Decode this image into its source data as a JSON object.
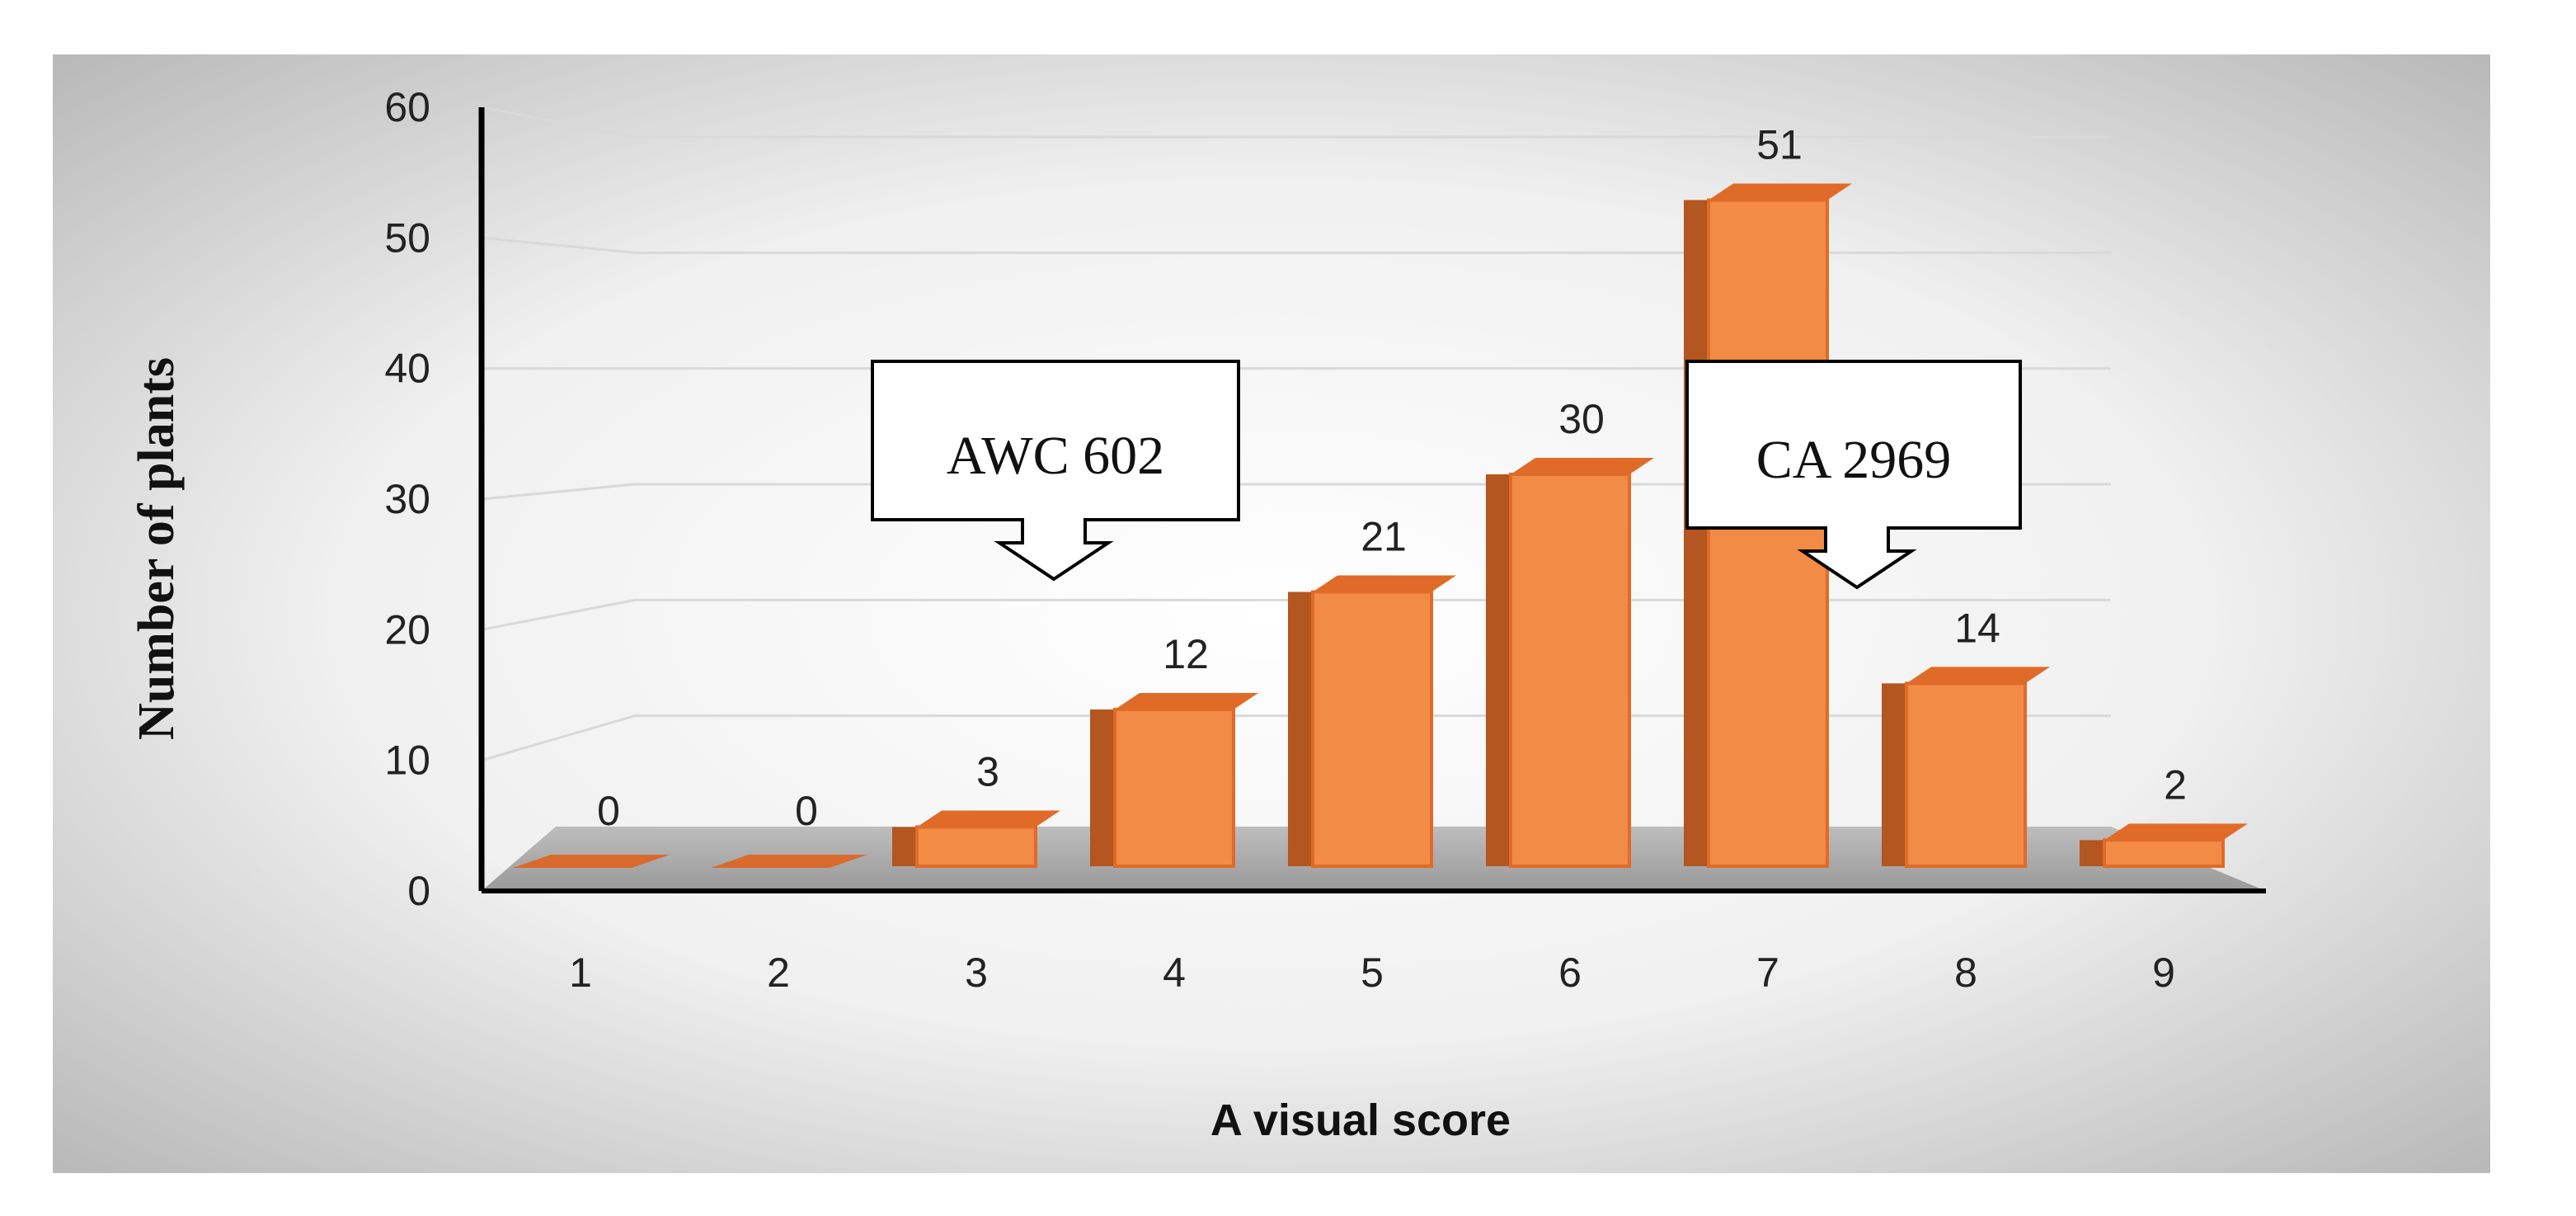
{
  "chart_data": {
    "type": "bar",
    "categories": [
      "1",
      "2",
      "3",
      "4",
      "5",
      "6",
      "7",
      "8",
      "9"
    ],
    "values": [
      0,
      0,
      3,
      12,
      21,
      30,
      51,
      14,
      2
    ],
    "title": "",
    "xlabel": "A visual score",
    "ylabel": "Number of plants",
    "ylim": [
      0,
      60
    ],
    "yticks": [
      "0",
      "10",
      "20",
      "30",
      "40",
      "50",
      "60"
    ],
    "grid": true,
    "legend": "none",
    "bar_color": "#F28B45",
    "annotations": [
      {
        "text": "AWC 602",
        "category": "3"
      },
      {
        "text": "CA 2969",
        "category": "8"
      }
    ]
  }
}
